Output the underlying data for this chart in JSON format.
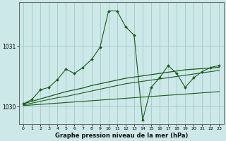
{
  "title": "Graphe pression niveau de la mer (hPa)",
  "bg_color": "#cce8e8",
  "line_color": "#1a5c1a",
  "grid_color": "#aacccc",
  "x_ticks": [
    0,
    1,
    2,
    3,
    4,
    5,
    6,
    7,
    8,
    9,
    10,
    11,
    12,
    13,
    14,
    15,
    16,
    17,
    18,
    19,
    20,
    21,
    22,
    23
  ],
  "ylim": [
    1029.72,
    1031.72
  ],
  "yticks": [
    1030,
    1031
  ],
  "series": {
    "main": [
      1030.05,
      1030.12,
      1030.28,
      1030.32,
      1030.45,
      1030.62,
      1030.55,
      1030.65,
      1030.78,
      1030.98,
      1031.58,
      1031.58,
      1031.32,
      1031.18,
      1029.78,
      1030.32,
      1030.48,
      1030.68,
      1030.55,
      1030.32,
      1030.48,
      1030.58,
      1030.65,
      1030.68
    ],
    "line1": [
      1030.02,
      1030.03,
      1030.04,
      1030.05,
      1030.06,
      1030.07,
      1030.08,
      1030.09,
      1030.1,
      1030.11,
      1030.12,
      1030.13,
      1030.14,
      1030.15,
      1030.16,
      1030.17,
      1030.18,
      1030.19,
      1030.2,
      1030.21,
      1030.22,
      1030.23,
      1030.24,
      1030.25
    ],
    "line2": [
      1030.03,
      1030.06,
      1030.09,
      1030.12,
      1030.15,
      1030.17,
      1030.2,
      1030.23,
      1030.26,
      1030.29,
      1030.32,
      1030.35,
      1030.38,
      1030.4,
      1030.42,
      1030.44,
      1030.46,
      1030.48,
      1030.5,
      1030.52,
      1030.54,
      1030.56,
      1030.58,
      1030.6
    ],
    "line3": [
      1030.05,
      1030.09,
      1030.13,
      1030.17,
      1030.21,
      1030.25,
      1030.28,
      1030.31,
      1030.35,
      1030.38,
      1030.41,
      1030.44,
      1030.47,
      1030.49,
      1030.51,
      1030.53,
      1030.55,
      1030.57,
      1030.59,
      1030.61,
      1030.62,
      1030.63,
      1030.64,
      1030.65
    ]
  }
}
